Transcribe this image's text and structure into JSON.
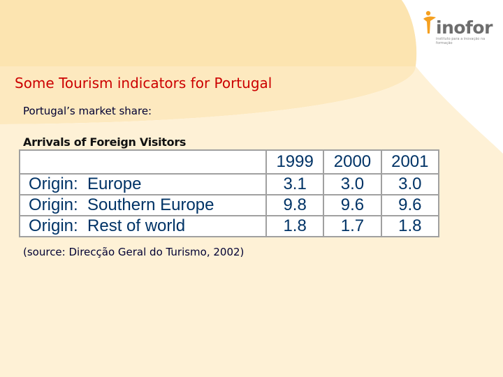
{
  "slide": {
    "title": "Some Tourism indicators for Portugal",
    "subtitle": "Portugal’s market share:",
    "table_caption": "Arrivals of Foreign Visitors",
    "source": "(source: Direcção Geral do Turismo, 2002)"
  },
  "logo": {
    "name": "inofor",
    "tagline": "instituto para a inovação na formação",
    "icon": "person-figure-icon"
  },
  "table": {
    "header": [
      "",
      "1999",
      "2000",
      "2001"
    ],
    "rows": [
      {
        "label": "Origin:  Europe",
        "values": [
          "3.1",
          "3.0",
          "3.0"
        ]
      },
      {
        "label": "Origin:  Southern Europe",
        "values": [
          "9.8",
          "9.6",
          "9.6"
        ]
      },
      {
        "label": "Origin:  Rest of world",
        "values": [
          "1.8",
          "1.7",
          "1.8"
        ]
      }
    ]
  },
  "colors": {
    "title": "#cc0000",
    "table_text": "#003366",
    "background_accent": "#fde8b8",
    "logo_orange": "#f5a020"
  }
}
